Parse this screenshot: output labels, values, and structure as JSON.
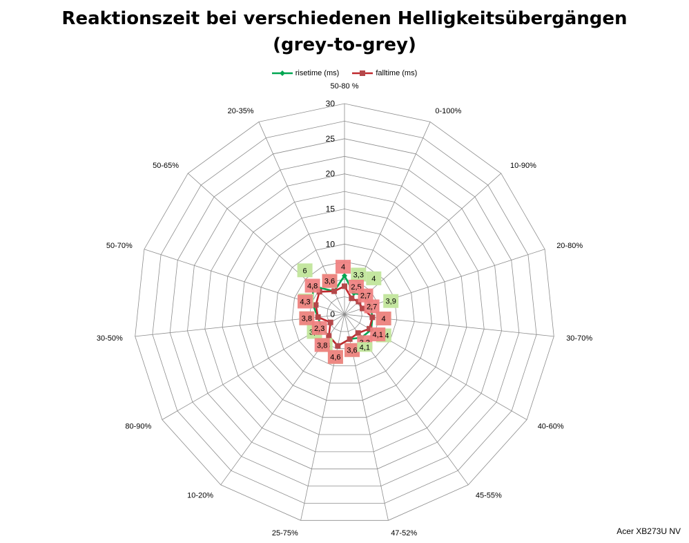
{
  "chart_data": {
    "type": "radar",
    "title_line1": "Reaktionszeit bei verschiedenen Helligkeitsübergängen",
    "title_line2": "(grey-to-grey)",
    "categories": [
      "50-80 %",
      "0-100%",
      "10-90%",
      "20-80%",
      "30-70%",
      "40-60%",
      "45-55%",
      "47-52%",
      "25-75%",
      "10-20%",
      "80-90%",
      "30-50%",
      "50-70%",
      "50-65%",
      "20-35%"
    ],
    "radial_ticks": [
      "0",
      "5",
      "10",
      "15",
      "20",
      "25",
      "30"
    ],
    "rmin": 0,
    "rmax": 30,
    "legend_position": "top",
    "series": [
      {
        "name": "risetime (ms)",
        "color": "#00a651",
        "label_color": "#c4e6a0",
        "values": [
          5.5,
          3.3,
          4,
          3.9,
          4,
          4.4,
          4.1,
          3.6,
          4.6,
          3.8,
          3.8,
          3.8,
          4.8,
          6,
          3.6
        ],
        "labels": [
          "",
          "3,3",
          "4",
          "3,9",
          "4",
          "4,4",
          "",
          "3,6",
          "4,6",
          "3,8",
          "3,8",
          "3,8",
          "4,8",
          "6",
          "3,6"
        ]
      },
      {
        "name": "falltime (ms)",
        "color": "#c0282d",
        "label_color": "#f08080",
        "values": [
          4,
          2.5,
          2.7,
          2.7,
          4,
          4.1,
          3.3,
          3.6,
          4.6,
          3.8,
          2.3,
          3.8,
          4.3,
          4.8,
          3.6
        ],
        "labels": [
          "4",
          "2,5",
          "2,7",
          "2,7",
          "4",
          "4,1",
          "3,3",
          "3,6",
          "4,6",
          "3,8",
          "2,3",
          "3,8",
          "4,3",
          "4,8",
          "3,6"
        ]
      }
    ],
    "extra_label": "4,1",
    "grid": true
  },
  "watermark": "Acer XB273U NV"
}
